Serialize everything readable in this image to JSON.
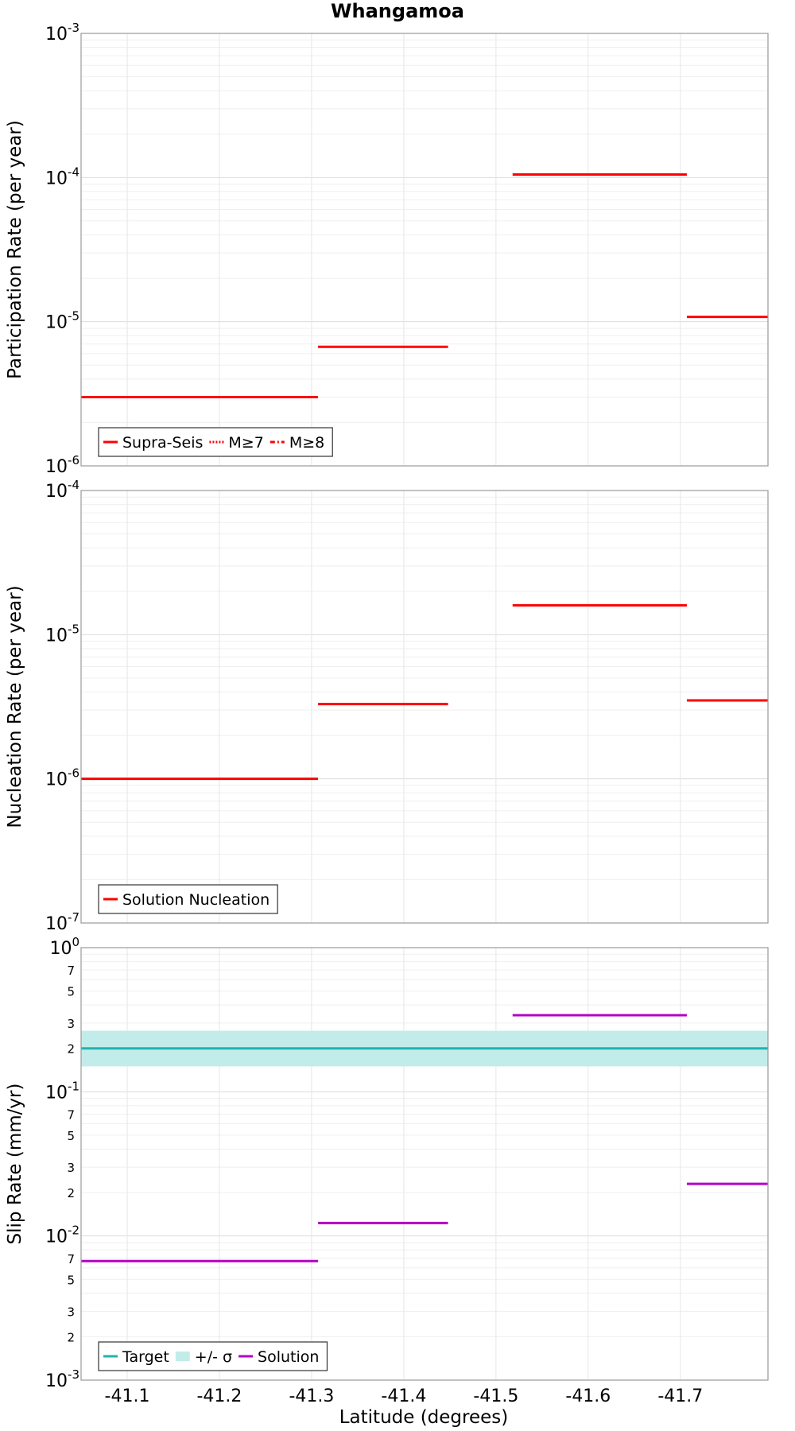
{
  "chart_data": {
    "title": "Whangamoa",
    "xlabel": "Latitude (degrees)",
    "xlim": [
      -41.05,
      -41.795
    ],
    "x_ticks": [
      -41.1,
      -41.2,
      -41.3,
      -41.4,
      -41.5,
      -41.6,
      -41.7
    ],
    "x_tick_labels": [
      "-41.1",
      "-41.2",
      "-41.3",
      "-41.4",
      "-41.5",
      "-41.6",
      "-41.7"
    ],
    "panels": [
      {
        "type": "line",
        "ylabel": "Participation Rate (per year)",
        "yscale": "log",
        "ylim": [
          1e-06,
          0.001
        ],
        "major_ticks": [
          {
            "value": 1e-06,
            "base": "10",
            "exp": "-6"
          },
          {
            "value": 1e-05,
            "base": "10",
            "exp": "-5"
          },
          {
            "value": 0.0001,
            "base": "10",
            "exp": "-4"
          },
          {
            "value": 0.001,
            "base": "10",
            "exp": "-3"
          }
        ],
        "minor_tick_labels": [],
        "grid": true,
        "bands": [],
        "legend": [
          {
            "label": "Supra-Seis",
            "color": "#ff0000",
            "style": "solid"
          },
          {
            "label": "M≥7",
            "color": "#ff0000",
            "style": "dotted"
          },
          {
            "label": "M≥8",
            "color": "#ff0000",
            "style": "dashdot"
          }
        ],
        "legend_position": "bottom-left",
        "series": [
          {
            "color": "#ff0000",
            "segments": [
              {
                "x0": -41.05,
                "x1": -41.307,
                "y": 3e-06
              },
              {
                "x0": -41.307,
                "x1": -41.448,
                "y": 6.7e-06
              },
              {
                "x0": -41.518,
                "x1": -41.707,
                "y": 0.000105
              },
              {
                "x0": -41.707,
                "x1": -41.795,
                "y": 1.08e-05
              }
            ]
          }
        ]
      },
      {
        "type": "line",
        "ylabel": "Nucleation Rate (per year)",
        "yscale": "log",
        "ylim": [
          1e-07,
          0.0001
        ],
        "major_ticks": [
          {
            "value": 1e-07,
            "base": "10",
            "exp": "-7"
          },
          {
            "value": 1e-06,
            "base": "10",
            "exp": "-6"
          },
          {
            "value": 1e-05,
            "base": "10",
            "exp": "-5"
          },
          {
            "value": 0.0001,
            "base": "10",
            "exp": "-4"
          }
        ],
        "minor_tick_labels": [],
        "grid": true,
        "bands": [],
        "legend": [
          {
            "label": "Solution Nucleation",
            "color": "#ff0000",
            "style": "solid"
          }
        ],
        "legend_position": "bottom-left",
        "series": [
          {
            "color": "#ff0000",
            "segments": [
              {
                "x0": -41.05,
                "x1": -41.307,
                "y": 1e-06
              },
              {
                "x0": -41.307,
                "x1": -41.448,
                "y": 3.3e-06
              },
              {
                "x0": -41.518,
                "x1": -41.707,
                "y": 1.6e-05
              },
              {
                "x0": -41.707,
                "x1": -41.795,
                "y": 3.5e-06
              }
            ]
          }
        ]
      },
      {
        "type": "line",
        "ylabel": "Slip Rate (mm/yr)",
        "yscale": "log",
        "ylim": [
          0.001,
          1
        ],
        "major_ticks": [
          {
            "value": 0.001,
            "base": "10",
            "exp": "-3"
          },
          {
            "value": 0.01,
            "base": "10",
            "exp": "-2"
          },
          {
            "value": 0.1,
            "base": "10",
            "exp": "-1"
          },
          {
            "value": 1,
            "base": "10",
            "exp": "0"
          }
        ],
        "minor_tick_labels": [
          {
            "value": 0.002,
            "label": "2"
          },
          {
            "value": 0.003,
            "label": "3"
          },
          {
            "value": 0.005,
            "label": "5"
          },
          {
            "value": 0.007,
            "label": "7"
          },
          {
            "value": 0.02,
            "label": "2"
          },
          {
            "value": 0.03,
            "label": "3"
          },
          {
            "value": 0.05,
            "label": "5"
          },
          {
            "value": 0.07,
            "label": "7"
          },
          {
            "value": 0.2,
            "label": "2"
          },
          {
            "value": 0.3,
            "label": "3"
          },
          {
            "value": 0.5,
            "label": "5"
          },
          {
            "value": 0.7,
            "label": "7"
          }
        ],
        "grid": true,
        "bands": [
          {
            "x0": -41.05,
            "x1": -41.795,
            "y0": 0.15,
            "y1": 0.265,
            "color": "#c2ecea"
          }
        ],
        "legend": [
          {
            "label": "Target",
            "color": "#1fb3b0",
            "style": "solid"
          },
          {
            "label": "+/- σ",
            "color": "#c2ecea",
            "style": "band"
          },
          {
            "label": "Solution",
            "color": "#b300c8",
            "style": "solid"
          }
        ],
        "legend_position": "bottom-left",
        "series": [
          {
            "color": "#1fb3b0",
            "segments": [
              {
                "x0": -41.05,
                "x1": -41.795,
                "y": 0.2
              }
            ]
          },
          {
            "color": "#b300c8",
            "segments": [
              {
                "x0": -41.05,
                "x1": -41.307,
                "y": 0.0067
              },
              {
                "x0": -41.307,
                "x1": -41.448,
                "y": 0.0123
              },
              {
                "x0": -41.518,
                "x1": -41.707,
                "y": 0.34
              },
              {
                "x0": -41.707,
                "x1": -41.795,
                "y": 0.023
              }
            ]
          }
        ]
      }
    ]
  }
}
